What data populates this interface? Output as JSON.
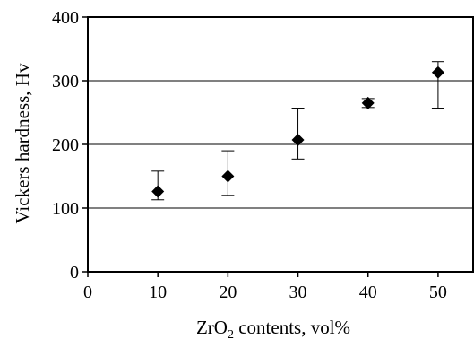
{
  "chart_data": {
    "type": "scatter",
    "title": "",
    "xlabel": {
      "prefix": "ZrO",
      "subscript": "2",
      "suffix": " contents, vol%"
    },
    "ylabel": "Vickers hardness, Hv",
    "xlim": [
      0,
      55
    ],
    "ylim": [
      0,
      400
    ],
    "xticks": [
      0,
      10,
      20,
      30,
      40,
      50
    ],
    "yticks": [
      0,
      100,
      200,
      300,
      400
    ],
    "grid": "horizontal",
    "legend": "none",
    "marker": "diamond",
    "marker_color": "#000000",
    "series": [
      {
        "x": [
          10,
          20,
          30,
          40,
          50
        ],
        "y": [
          126,
          150,
          207,
          265,
          313
        ],
        "error_low": [
          113,
          120,
          177,
          258,
          257
        ],
        "error_high": [
          158,
          190,
          257,
          272,
          330
        ]
      }
    ]
  }
}
